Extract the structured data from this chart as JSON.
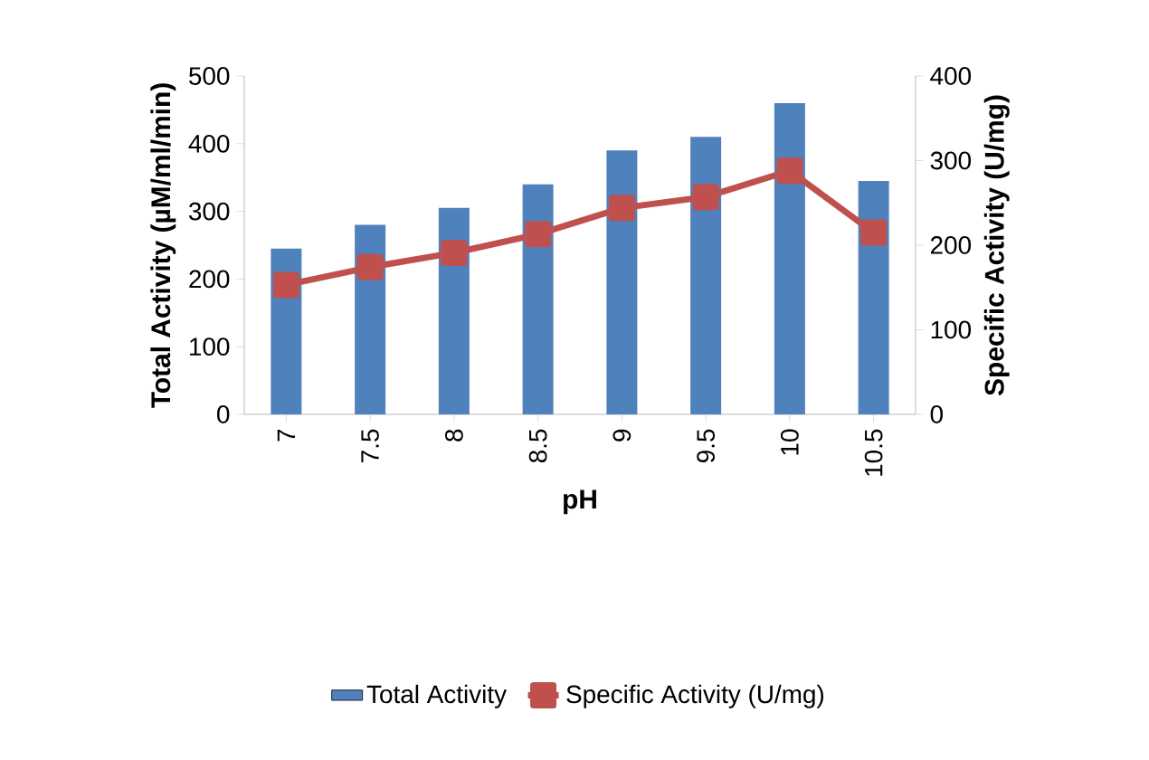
{
  "chart_data": {
    "type": "bar",
    "xlabel": "pH",
    "ylabel": "Total Activity (µM/ml/min)",
    "y2label": "Specific Activity (U/mg)",
    "categories": [
      "7",
      "7.5",
      "8",
      "8.5",
      "9",
      "9.5",
      "10",
      "10.5"
    ],
    "ylim": [
      0,
      500
    ],
    "yticks": [
      0,
      100,
      200,
      300,
      400,
      500
    ],
    "y2lim": [
      0,
      400
    ],
    "y2ticks": [
      0,
      100,
      200,
      300,
      400
    ],
    "legend": "bottom",
    "marker": "square",
    "series": [
      {
        "name": "Total Activity",
        "color": "#4f81bd",
        "values": [
          245,
          280,
          305,
          340,
          390,
          410,
          460,
          345
        ]
      },
      {
        "name": "Specific Activity (U/mg)",
        "type": "line",
        "axis": "y2",
        "color": "#c0504d",
        "values": [
          153,
          174,
          191,
          213,
          244,
          257,
          288,
          215
        ]
      }
    ]
  }
}
